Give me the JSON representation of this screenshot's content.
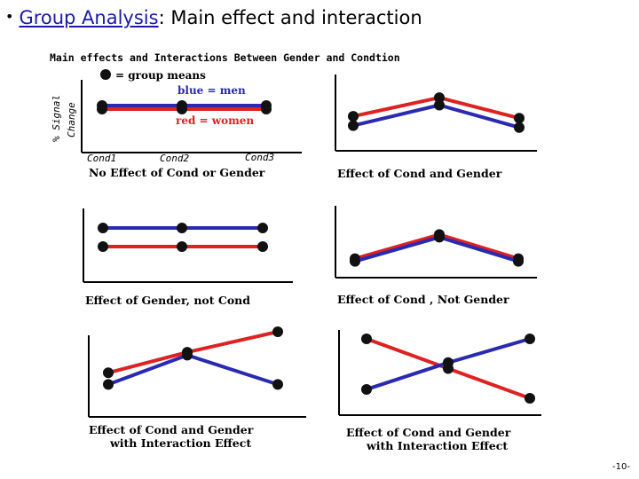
{
  "slide": {
    "bullet": "•",
    "title_link": "Group Analysis",
    "title_rest": ": Main effect and interaction",
    "page_number": "-10-"
  },
  "figure": {
    "header": "Main effects and Interactions Between Gender and Condtion",
    "legend_dot": "= group means",
    "legend_blue": "blue = men",
    "legend_red": "red = women",
    "y_label_line1": "% Signal",
    "y_label_line2": "Change",
    "x_cond1": "Cond1",
    "x_cond2": "Cond2",
    "x_cond3": "Cond3",
    "colors": {
      "men": "#2a2ab0",
      "women": "#dd2222",
      "dot": "#111111"
    }
  },
  "panels": [
    {
      "id": "p1",
      "caption": [
        "No Effect of Cond  or Gender"
      ],
      "men": [
        0,
        0,
        0
      ],
      "women": [
        0,
        0,
        0
      ]
    },
    {
      "id": "p2",
      "caption": [
        "Effect of  Cond  and Gender"
      ],
      "men": [
        0.2,
        0.75,
        0.15
      ],
      "women": [
        0.45,
        0.95,
        0.4
      ]
    },
    {
      "id": "p3",
      "caption": [
        "Effect of Gender, not Cond"
      ],
      "men": [
        1,
        1,
        1
      ],
      "women": [
        0,
        0,
        0
      ]
    },
    {
      "id": "p4",
      "caption": [
        "Effect of  Cond , Not Gender"
      ],
      "men": [
        0.1,
        0.9,
        0.1
      ],
      "women": [
        0.1,
        0.9,
        0.1
      ]
    },
    {
      "id": "p5",
      "caption": [
        "Effect of Cond  and Gender",
        "with Interaction Effect"
      ],
      "men": [
        0.1,
        0.6,
        0.1
      ],
      "women": [
        0.3,
        0.65,
        1.0
      ]
    },
    {
      "id": "p6",
      "caption": [
        "Effect of  Cond  and Gender",
        "with Interaction Effect"
      ],
      "men": [
        0.15,
        0.6,
        1.0
      ],
      "women": [
        1.0,
        0.5,
        0.0
      ]
    }
  ]
}
